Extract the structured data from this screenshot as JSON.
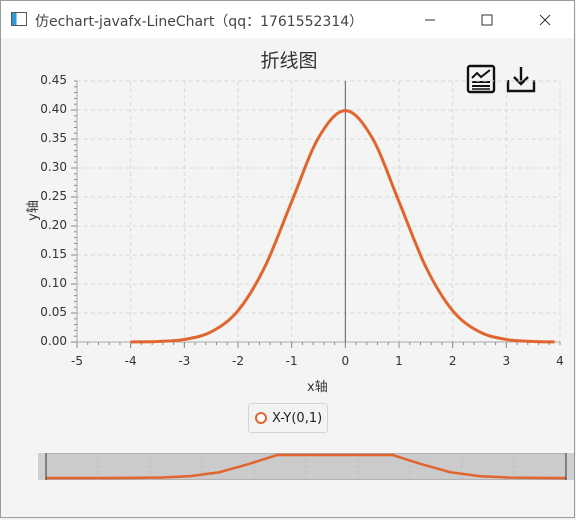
{
  "window": {
    "title": "仿echart-javafx-LineChart（qq：1761552314）",
    "minimize_icon": "minimize-icon",
    "maximize_icon": "maximize-icon",
    "close_icon": "close-icon"
  },
  "toolbar": {
    "data_view_icon": "data-view-icon",
    "save_icon": "download-icon"
  },
  "colors": {
    "series": "#e0652f",
    "grid": "#d9d9d9",
    "axis": "#606060"
  },
  "chart_data": {
    "type": "line",
    "title": "折线图",
    "xlabel": "x轴",
    "ylabel": "y轴",
    "xlim": [
      -5,
      4
    ],
    "ylim": [
      0,
      0.45
    ],
    "x_ticks": [
      "-5",
      "-4",
      "-3",
      "-2",
      "-1",
      "0",
      "1",
      "2",
      "3",
      "4"
    ],
    "y_ticks": [
      "0.00",
      "0.05",
      "0.10",
      "0.15",
      "0.20",
      "0.25",
      "0.30",
      "0.35",
      "0.40",
      "0.45"
    ],
    "grid": true,
    "legend_position": "bottom",
    "series": [
      {
        "name": "X-Y(0,1)",
        "color": "#e0652f",
        "x": [
          -4,
          -3.5,
          -3,
          -2.5,
          -2,
          -1.5,
          -1,
          -0.5,
          0,
          0.5,
          1,
          1.5,
          2,
          2.5,
          3,
          3.5,
          3.9
        ],
        "y": [
          0.0001,
          0.0009,
          0.0044,
          0.0175,
          0.054,
          0.1295,
          0.242,
          0.3521,
          0.3989,
          0.3521,
          0.242,
          0.1295,
          0.054,
          0.0175,
          0.0044,
          0.0009,
          0.0002
        ]
      }
    ]
  },
  "range_slider": {
    "overview_series": "X-Y(0,1)"
  }
}
